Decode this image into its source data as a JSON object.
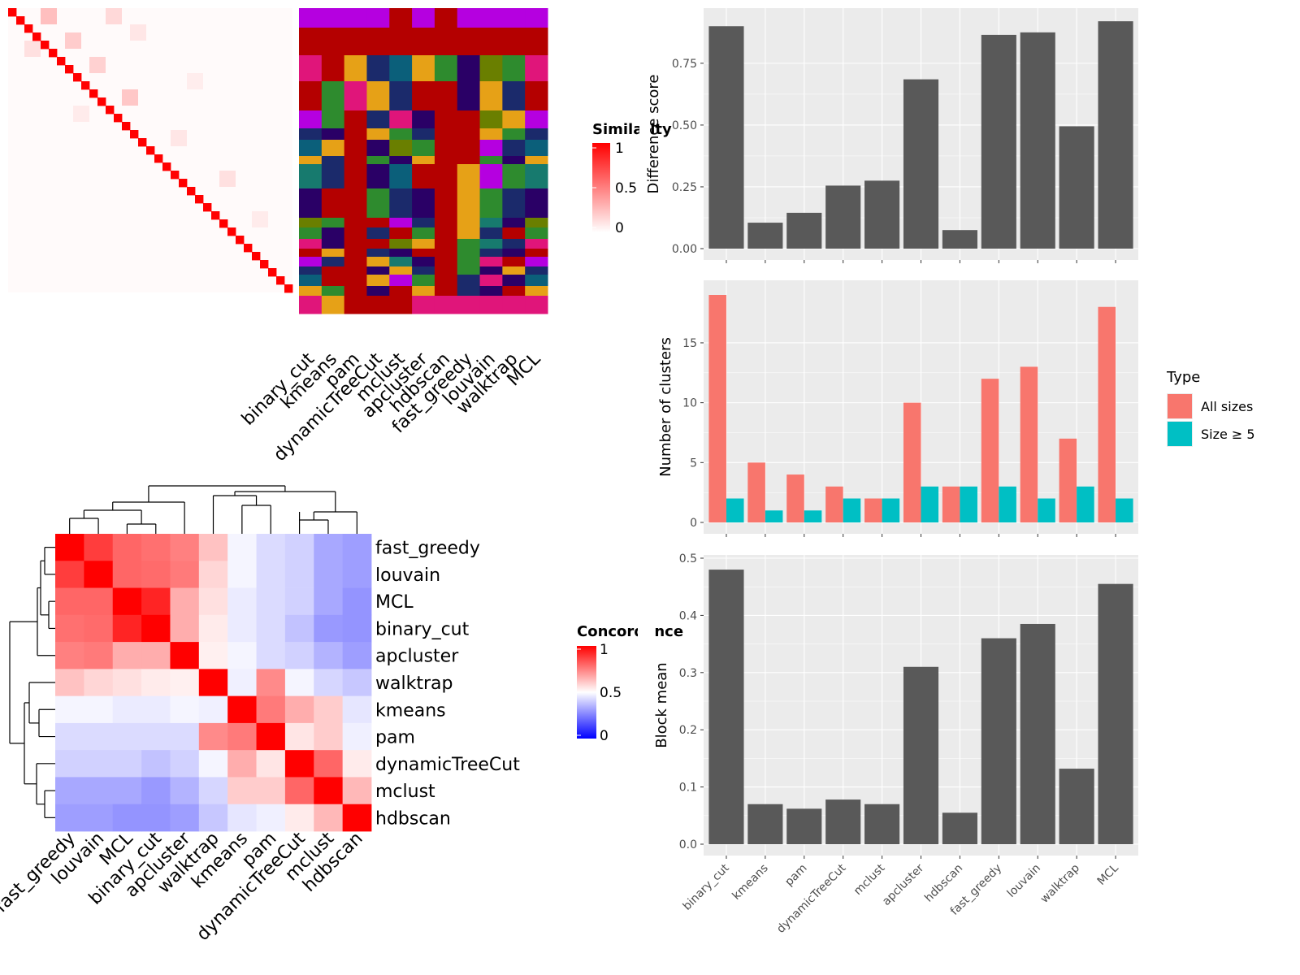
{
  "colors": {
    "panel_bg": "#ebebeb",
    "grid": "#ffffff",
    "bar": "#595959",
    "all_sizes": "#f8766d",
    "size_ge5": "#00bfc4",
    "heat_high": "#ff0000",
    "heat_mid": "#ffffff",
    "heat_low": "#0000ff"
  },
  "chart_data": [
    {
      "id": "similarity",
      "type": "heatmap",
      "legend_title": "Similarity",
      "legend_ticks": [
        "1",
        "0.5",
        "0"
      ],
      "n": 35,
      "diagonal_value": 1,
      "background_value": 0.02
    },
    {
      "id": "assignments",
      "type": "heatmap",
      "columns": [
        "binary_cut",
        "kmeans",
        "pam",
        "dynamicTreeCut",
        "mclust",
        "apcluster",
        "hdbscan",
        "fast_greedy",
        "louvain",
        "walktrap",
        "MCL"
      ]
    },
    {
      "id": "difference",
      "type": "bar",
      "categories": [
        "binary_cut",
        "kmeans",
        "pam",
        "dynamicTreeCut",
        "mclust",
        "apcluster",
        "hdbscan",
        "fast_greedy",
        "louvain",
        "walktrap",
        "MCL"
      ],
      "values": [
        0.9,
        0.105,
        0.145,
        0.255,
        0.275,
        0.685,
        0.075,
        0.865,
        0.875,
        0.495,
        0.92
      ],
      "ylabel": "Difference score",
      "yticks": [
        "0.00",
        "0.25",
        "0.50",
        "0.75"
      ],
      "ylim": [
        0,
        0.96
      ]
    },
    {
      "id": "clusters",
      "type": "bar",
      "categories": [
        "binary_cut",
        "kmeans",
        "pam",
        "dynamicTreeCut",
        "mclust",
        "apcluster",
        "hdbscan",
        "fast_greedy",
        "louvain",
        "walktrap",
        "MCL"
      ],
      "series": [
        {
          "name": "All sizes",
          "values": [
            19,
            5,
            4,
            3,
            2,
            10,
            3,
            12,
            13,
            7,
            18
          ]
        },
        {
          "name": "Size ≥ 5",
          "values": [
            2,
            1,
            1,
            2,
            2,
            3,
            3,
            3,
            2,
            3,
            2
          ]
        }
      ],
      "ylabel": "Number of clusters",
      "yticks": [
        "0",
        "5",
        "10",
        "15"
      ],
      "ylim": [
        0,
        19.95
      ],
      "legend_title": "Type"
    },
    {
      "id": "block_mean",
      "type": "bar",
      "categories": [
        "binary_cut",
        "kmeans",
        "pam",
        "dynamicTreeCut",
        "mclust",
        "apcluster",
        "hdbscan",
        "fast_greedy",
        "louvain",
        "walktrap",
        "MCL"
      ],
      "values": [
        0.48,
        0.07,
        0.062,
        0.078,
        0.07,
        0.31,
        0.055,
        0.36,
        0.385,
        0.132,
        0.455
      ],
      "ylabel": "Block mean",
      "yticks": [
        "0.0",
        "0.1",
        "0.2",
        "0.3",
        "0.4",
        "0.5"
      ],
      "ylim": [
        0,
        0.5
      ]
    },
    {
      "id": "concordance",
      "type": "heatmap",
      "legend_title": "Concordance",
      "legend_ticks": [
        "1",
        "0.5",
        "0"
      ],
      "labels": [
        "fast_greedy",
        "louvain",
        "MCL",
        "binary_cut",
        "apcluster",
        "walktrap",
        "kmeans",
        "pam",
        "dynamicTreeCut",
        "mclust",
        "hdbscan"
      ],
      "matrix": [
        [
          1.0,
          0.88,
          0.8,
          0.78,
          0.75,
          0.62,
          0.48,
          0.43,
          0.41,
          0.33,
          0.31
        ],
        [
          0.88,
          1.0,
          0.8,
          0.79,
          0.76,
          0.58,
          0.48,
          0.43,
          0.41,
          0.33,
          0.31
        ],
        [
          0.8,
          0.8,
          1.0,
          0.93,
          0.66,
          0.56,
          0.46,
          0.43,
          0.41,
          0.33,
          0.29
        ],
        [
          0.78,
          0.79,
          0.93,
          1.0,
          0.66,
          0.54,
          0.46,
          0.43,
          0.38,
          0.3,
          0.29
        ],
        [
          0.75,
          0.76,
          0.66,
          0.66,
          1.0,
          0.53,
          0.48,
          0.43,
          0.41,
          0.35,
          0.31
        ],
        [
          0.62,
          0.58,
          0.56,
          0.54,
          0.53,
          1.0,
          0.47,
          0.73,
          0.48,
          0.42,
          0.39
        ],
        [
          0.48,
          0.48,
          0.46,
          0.46,
          0.48,
          0.47,
          1.0,
          0.76,
          0.66,
          0.6,
          0.45
        ],
        [
          0.43,
          0.43,
          0.43,
          0.43,
          0.43,
          0.73,
          0.76,
          1.0,
          0.55,
          0.6,
          0.47
        ],
        [
          0.41,
          0.41,
          0.41,
          0.38,
          0.41,
          0.48,
          0.66,
          0.55,
          1.0,
          0.8,
          0.54
        ],
        [
          0.33,
          0.33,
          0.33,
          0.3,
          0.35,
          0.42,
          0.6,
          0.6,
          0.8,
          1.0,
          0.64
        ],
        [
          0.31,
          0.31,
          0.29,
          0.29,
          0.31,
          0.39,
          0.45,
          0.47,
          0.54,
          0.64,
          1.0
        ]
      ]
    }
  ]
}
